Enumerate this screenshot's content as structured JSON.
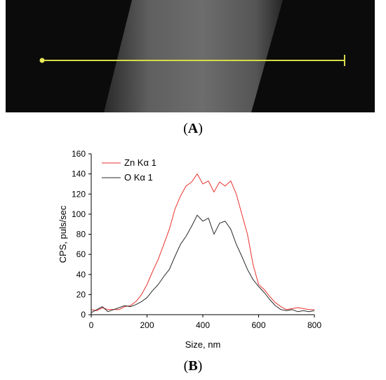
{
  "panel_a": {
    "caption_open": "(",
    "caption_letter": "A",
    "caption_close": ")",
    "colors": {
      "background": "#0b0b0b",
      "nanowire": "#6a6a6a",
      "scan_line": "#d9d94a"
    }
  },
  "panel_b": {
    "caption_open": "(",
    "caption_letter": "B",
    "caption_close": ")"
  },
  "chart_data": {
    "type": "line",
    "title": "",
    "xlabel": "Size, nm",
    "ylabel": "CPS, puls/sec",
    "xlim": [
      0,
      800
    ],
    "ylim": [
      0,
      160
    ],
    "xticks": [
      0,
      200,
      400,
      600,
      800
    ],
    "yticks": [
      0,
      20,
      40,
      60,
      80,
      100,
      120,
      140,
      160
    ],
    "grid": false,
    "legend": "top-left",
    "series": [
      {
        "name": "Zn Kα 1",
        "color": "#e8322e",
        "x": [
          0,
          20,
          40,
          60,
          80,
          100,
          120,
          140,
          160,
          180,
          200,
          220,
          240,
          260,
          280,
          300,
          320,
          340,
          360,
          380,
          400,
          420,
          440,
          460,
          480,
          500,
          520,
          540,
          560,
          580,
          600,
          620,
          640,
          660,
          680,
          700,
          720,
          740,
          760,
          780,
          800
        ],
        "values": [
          5,
          4,
          7,
          5,
          5,
          5,
          8,
          9,
          13,
          20,
          30,
          43,
          55,
          70,
          85,
          105,
          118,
          128,
          132,
          140,
          130,
          133,
          122,
          132,
          128,
          133,
          120,
          100,
          80,
          50,
          30,
          25,
          18,
          12,
          8,
          5,
          6,
          7,
          6,
          5,
          5
        ]
      },
      {
        "name": "O Kα 1",
        "color": "#2a2a2a",
        "x": [
          0,
          20,
          40,
          60,
          80,
          100,
          120,
          140,
          160,
          180,
          200,
          220,
          240,
          260,
          280,
          300,
          320,
          340,
          360,
          380,
          400,
          420,
          440,
          460,
          480,
          500,
          520,
          540,
          560,
          580,
          600,
          620,
          640,
          660,
          680,
          700,
          720,
          740,
          760,
          780,
          800
        ],
        "values": [
          2,
          5,
          8,
          3,
          5,
          7,
          9,
          8,
          10,
          13,
          17,
          24,
          30,
          38,
          45,
          58,
          70,
          78,
          88,
          99,
          93,
          96,
          80,
          91,
          93,
          85,
          70,
          58,
          45,
          35,
          28,
          22,
          15,
          9,
          5,
          4,
          5,
          3,
          4,
          3,
          4
        ]
      }
    ]
  }
}
